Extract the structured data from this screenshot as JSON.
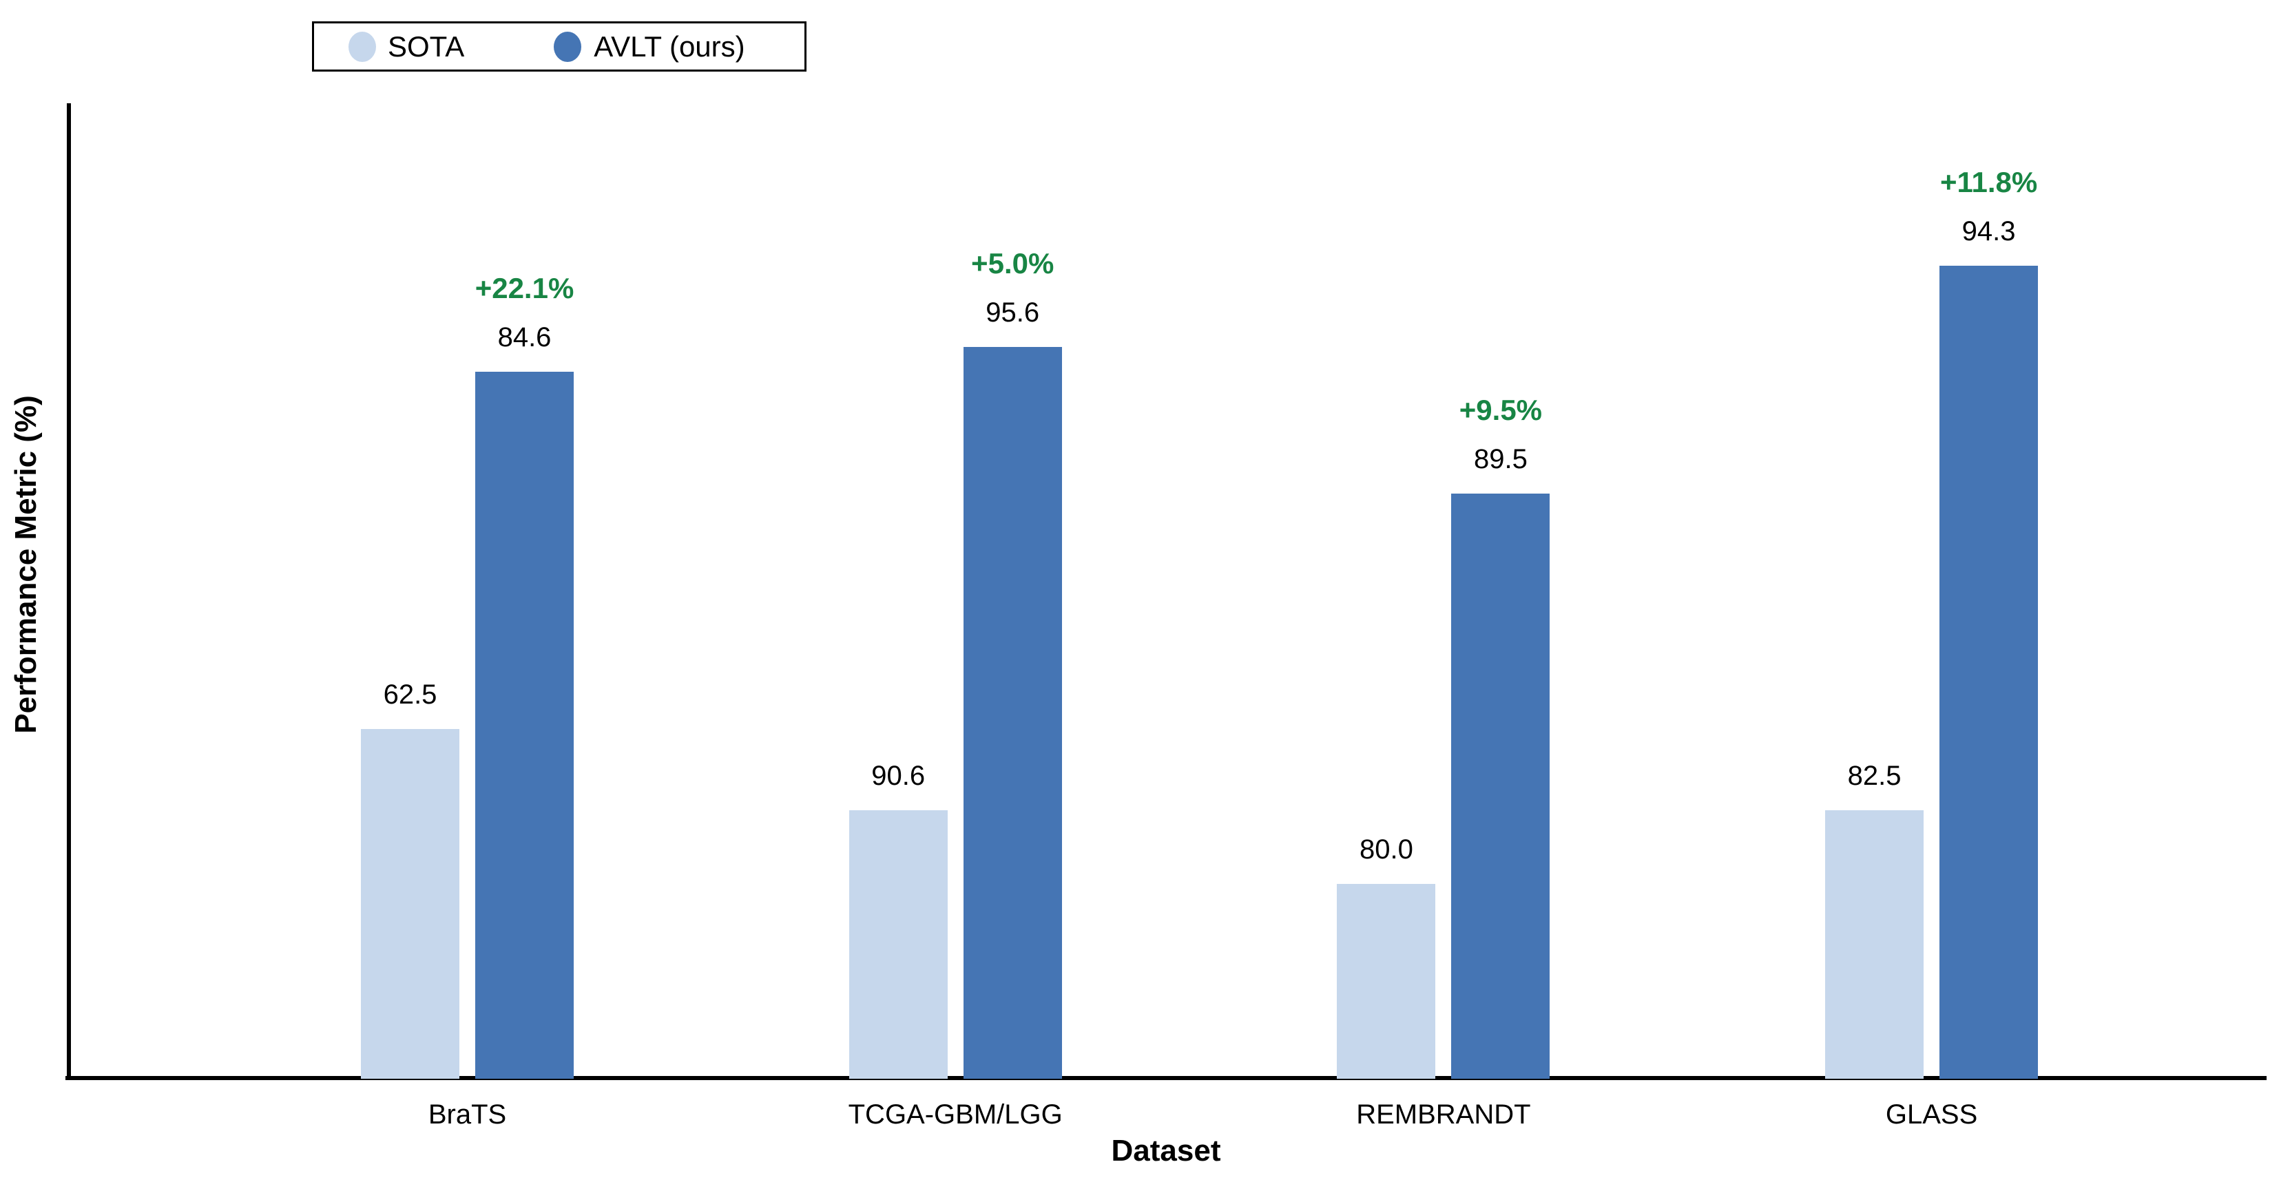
{
  "chart_data": {
    "type": "bar",
    "title": "",
    "xlabel": "Dataset",
    "ylabel": "Performance Metric (%)",
    "categories": [
      "BraTS",
      "TCGA-GBM/LGG",
      "REMBRANDT",
      "GLASS"
    ],
    "series": [
      {
        "name": "SOTA",
        "color": "#c6d7ec",
        "values": [
          62.5,
          90.6,
          80.0,
          82.5
        ],
        "bar_height_fracs": [
          0.357,
          0.274,
          0.198,
          0.274
        ]
      },
      {
        "name": "AVLT (ours)",
        "color": "#4575b4",
        "values": [
          84.6,
          95.6,
          89.5,
          94.3
        ],
        "bar_height_fracs": [
          0.724,
          0.75,
          0.599,
          0.833
        ]
      }
    ],
    "improvement_labels": [
      "+22.1%",
      "+5.0%",
      "+9.5%",
      "+11.8%"
    ],
    "improvement_color": "#188544",
    "value_label_color": "#000000",
    "axis_color": "#000000",
    "background": "#ffffff",
    "legend": {
      "position": "top-left",
      "entries": [
        "SOTA",
        "AVLT (ours)"
      ]
    },
    "grid": false,
    "y_axis_tick_labels": "none"
  }
}
